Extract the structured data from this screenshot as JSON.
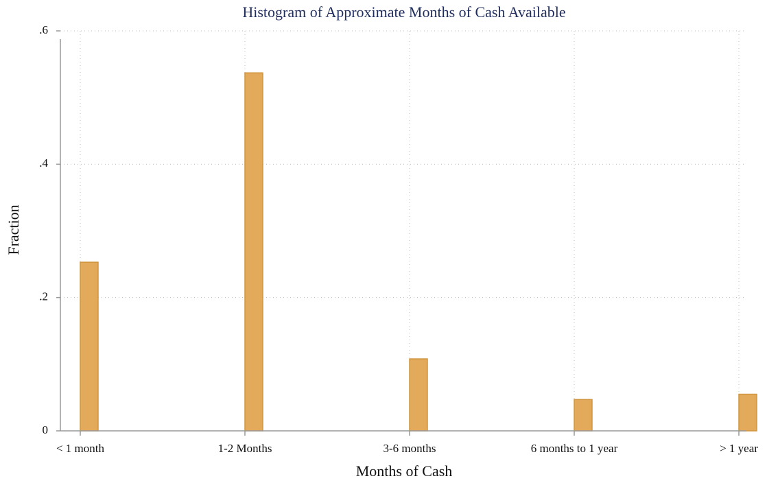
{
  "chart_data": {
    "type": "bar",
    "title": "Histogram of Approximate Months of Cash Available",
    "xlabel": "Months of Cash",
    "ylabel": "Fraction",
    "categories": [
      "< 1 month",
      "1-2 Months",
      "3-6 months",
      "6 months to 1 year",
      "> 1 year"
    ],
    "values": [
      0.253,
      0.537,
      0.108,
      0.047,
      0.055
    ],
    "color": "#e3aa5c",
    "ylim": [
      0,
      0.6
    ],
    "yticks": [
      0,
      {
        "value": 0.2,
        "label": ".2"
      },
      {
        "value": 0.4,
        "label": ".4"
      },
      {
        "value": 0.6,
        "label": ".6"
      }
    ],
    "grid": true
  }
}
